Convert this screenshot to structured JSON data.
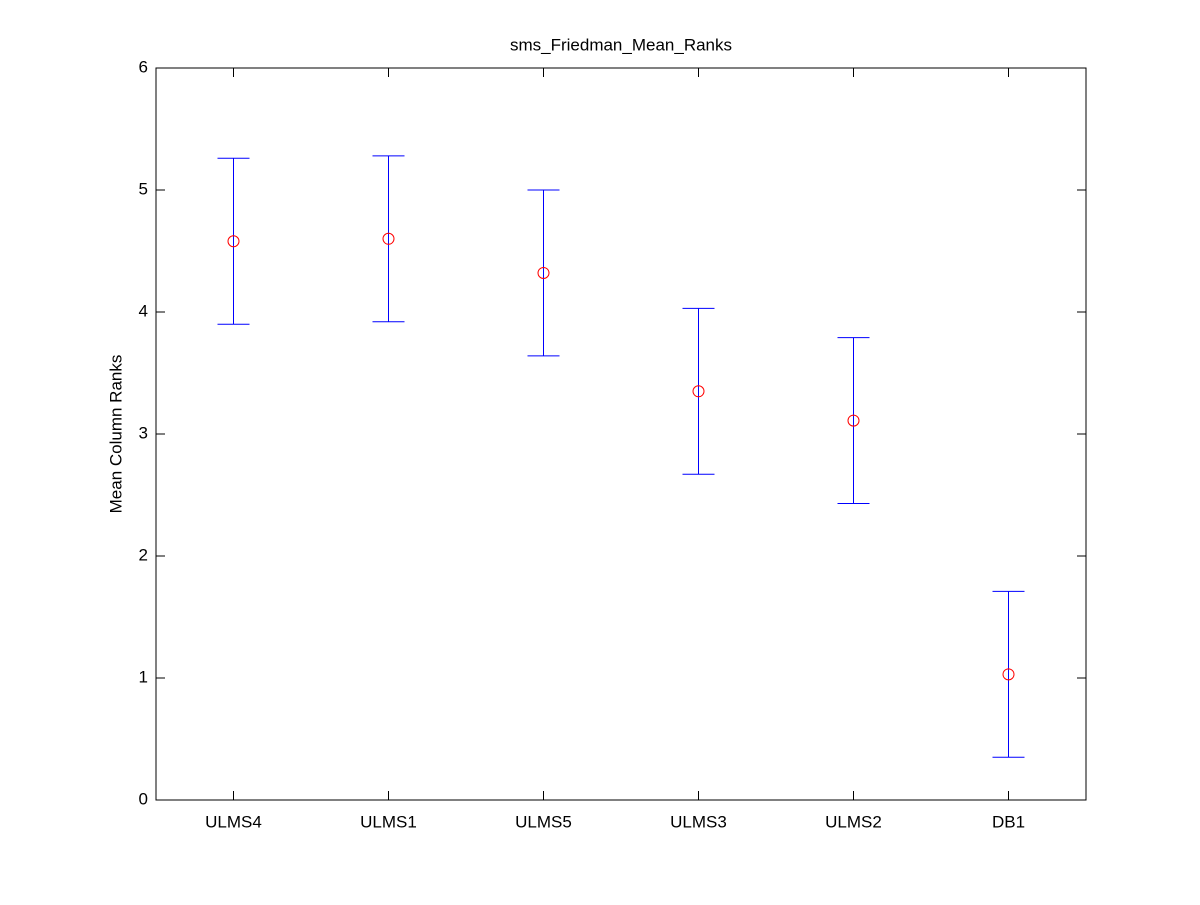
{
  "chart_data": {
    "type": "errorbar",
    "title": "sms_Friedman_Mean_Ranks",
    "ylabel": "Mean Column Ranks",
    "categories": [
      "ULMS4",
      "ULMS1",
      "ULMS5",
      "ULMS3",
      "ULMS2",
      "DB1"
    ],
    "values": [
      4.58,
      4.6,
      4.32,
      3.35,
      3.11,
      1.03
    ],
    "errors": [
      0.68,
      0.68,
      0.68,
      0.68,
      0.68,
      0.68
    ],
    "marker_color": "#ff0000",
    "errorbar_color": "#0000ff",
    "ylim": [
      0,
      6
    ],
    "yticks": [
      0,
      1,
      2,
      3,
      4,
      5,
      6
    ],
    "grid": false
  }
}
